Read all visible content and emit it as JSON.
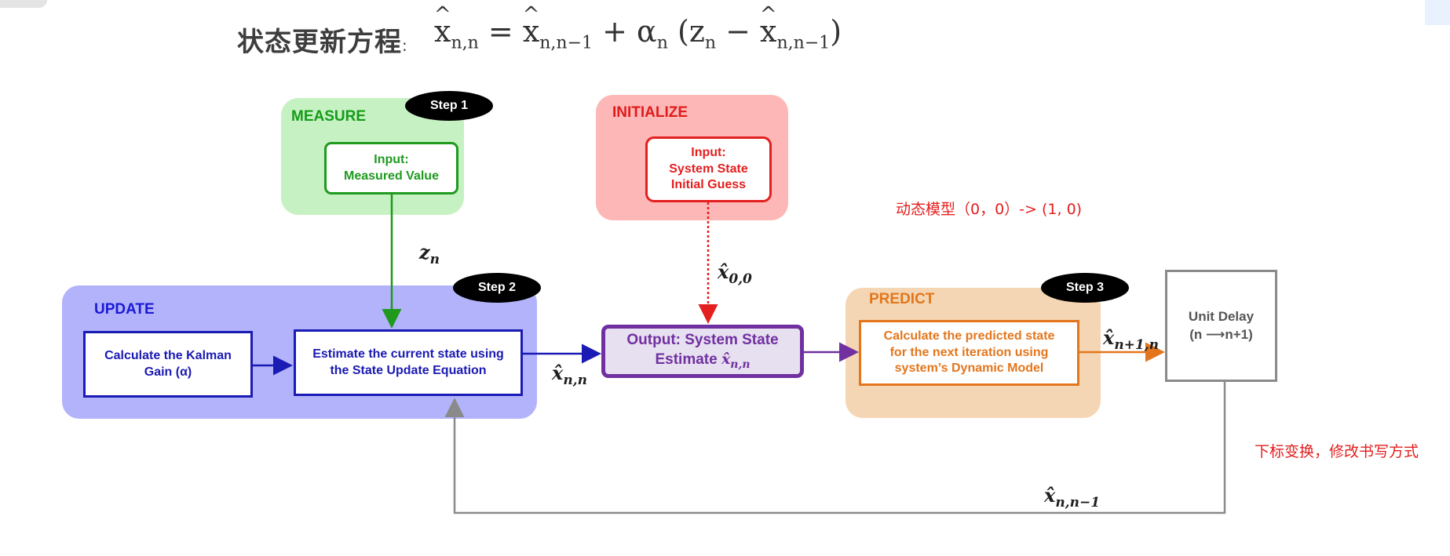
{
  "header": {
    "title": "状态更新方程",
    "separator": ":",
    "equation": {
      "lhs_var": "x",
      "lhs_sub": "n,n",
      "equals": "=",
      "rhs_var1": "x",
      "rhs_sub1": "n,n−1",
      "plus": "+",
      "alpha": "α",
      "alpha_sub": "n",
      "open_paren": "(",
      "z_var": "z",
      "z_sub": "n",
      "minus": "−",
      "rhs_var2": "x",
      "rhs_sub2": "n,n−1",
      "close_paren": ")"
    }
  },
  "groups": {
    "measure": {
      "label": "MEASURE"
    },
    "initialize": {
      "label": "INITIALIZE"
    },
    "update": {
      "label": "UPDATE"
    },
    "predict": {
      "label": "PREDICT"
    }
  },
  "steps": {
    "step1": "Step 1",
    "step2": "Step 2",
    "step3": "Step 3"
  },
  "boxes": {
    "measure_input": {
      "line1": "Input:",
      "line2": "Measured Value"
    },
    "init_input": {
      "line1": "Input:",
      "line2": "System State",
      "line3": "Initial Guess"
    },
    "kalman_gain": {
      "line1": "Calculate the Kalman",
      "line2": "Gain (α)"
    },
    "estimate": {
      "line1": "Estimate the current state using",
      "line2": "the State Update Equation"
    },
    "output": {
      "line1": "Output: System State",
      "line2_prefix": "Estimate ",
      "line2_var": "x̂",
      "line2_sub": "n,n"
    },
    "predict": {
      "line1": "Calculate the predicted state",
      "line2": "for the next iteration using",
      "line3": "system’s Dynamic Model"
    },
    "unit_delay": {
      "line1": "Unit Delay",
      "line2": "(n ⟶n+1)"
    }
  },
  "symbols": {
    "zn": {
      "var": "z",
      "sub": "n"
    },
    "x00": {
      "var": "x̂",
      "sub": "0,0"
    },
    "xnn": {
      "var": "x̂",
      "sub": "n,n"
    },
    "xn1n": {
      "var": "x̂",
      "sub": "n+1,n"
    },
    "xnn1": {
      "var": "x̂",
      "sub": "n,n−1"
    }
  },
  "annotations": {
    "dynamic_model": "动态模型（0，0）-> (1, 0)",
    "subscript_change": "下标变换，修改书写方式"
  },
  "colors": {
    "measure": "#1f9a1f",
    "initialize": "#e31f1f",
    "update": "#1a1ab4",
    "output": "#7030a0",
    "predict": "#e3761c",
    "delay": "#8a8a8a"
  }
}
